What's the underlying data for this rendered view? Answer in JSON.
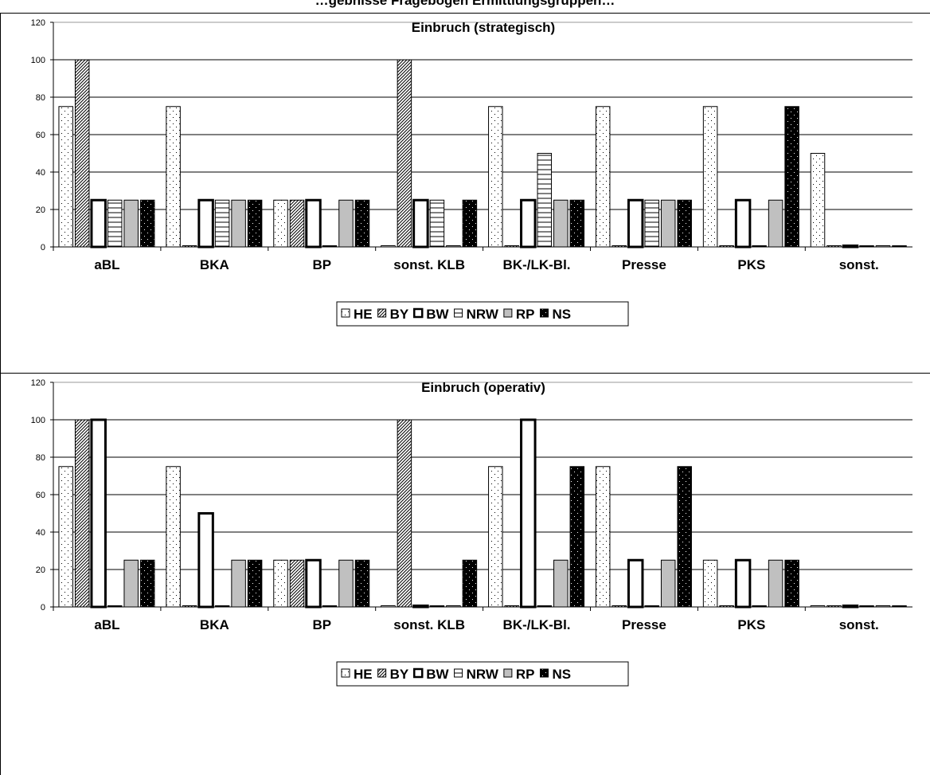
{
  "page": {
    "title": "…gebnisse Fragebogen Ermittlungsgruppen…"
  },
  "chart_data": [
    {
      "type": "bar",
      "title": "Einbruch (strategisch)",
      "categories": [
        "aBL",
        "BKA",
        "BP",
        "sonst. KLB",
        "BK-/LK-Bl.",
        "Presse",
        "PKS",
        "sonst."
      ],
      "ylim": [
        0,
        120
      ],
      "yticks": [
        0,
        20,
        40,
        60,
        80,
        100,
        120
      ],
      "grid": true,
      "legend_position": "bottom",
      "series": [
        {
          "name": "HE",
          "values": [
            75,
            75,
            25,
            0,
            75,
            75,
            75,
            50
          ]
        },
        {
          "name": "BY",
          "values": [
            100,
            0,
            25,
            100,
            0,
            0,
            0,
            0
          ]
        },
        {
          "name": "BW",
          "values": [
            25,
            25,
            25,
            25,
            25,
            25,
            25,
            0
          ]
        },
        {
          "name": "NRW",
          "values": [
            25,
            25,
            0,
            25,
            50,
            25,
            0,
            0
          ]
        },
        {
          "name": "RP",
          "values": [
            25,
            25,
            25,
            0,
            25,
            25,
            25,
            0
          ]
        },
        {
          "name": "NS",
          "values": [
            25,
            25,
            25,
            25,
            25,
            25,
            75,
            0
          ]
        }
      ]
    },
    {
      "type": "bar",
      "title": "Einbruch (operativ)",
      "categories": [
        "aBL",
        "BKA",
        "BP",
        "sonst. KLB",
        "BK-/LK-Bl.",
        "Presse",
        "PKS",
        "sonst."
      ],
      "ylim": [
        0,
        120
      ],
      "yticks": [
        0,
        20,
        40,
        60,
        80,
        100,
        120
      ],
      "grid": true,
      "legend_position": "bottom",
      "series": [
        {
          "name": "HE",
          "values": [
            75,
            75,
            25,
            0,
            75,
            75,
            25,
            0
          ]
        },
        {
          "name": "BY",
          "values": [
            100,
            0,
            25,
            100,
            0,
            0,
            0,
            0
          ]
        },
        {
          "name": "BW",
          "values": [
            100,
            50,
            25,
            0,
            100,
            25,
            25,
            0
          ]
        },
        {
          "name": "NRW",
          "values": [
            0,
            0,
            0,
            0,
            0,
            0,
            0,
            0
          ]
        },
        {
          "name": "RP",
          "values": [
            25,
            25,
            25,
            0,
            25,
            25,
            25,
            0
          ]
        },
        {
          "name": "NS",
          "values": [
            25,
            25,
            25,
            25,
            75,
            75,
            25,
            0
          ]
        }
      ]
    }
  ]
}
